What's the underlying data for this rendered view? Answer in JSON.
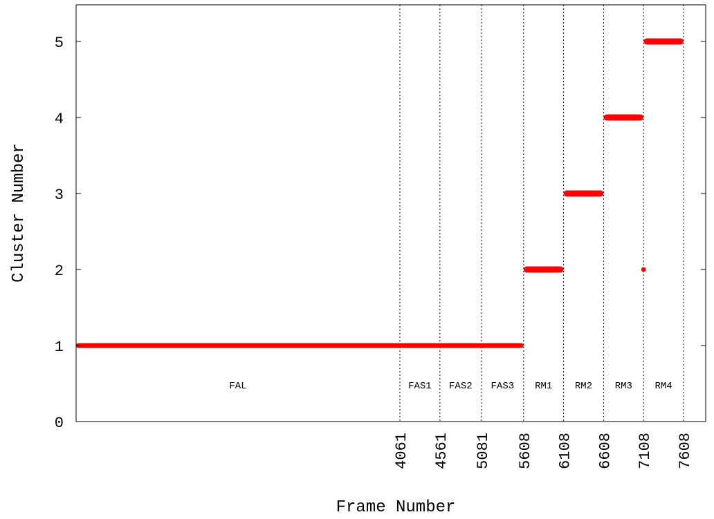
{
  "chart_data": {
    "type": "scatter",
    "xlabel": "Frame Number",
    "ylabel": "Cluster Number",
    "xlim": [
      0,
      7608
    ],
    "ylim": [
      0,
      5.5
    ],
    "y_ticks": [
      "0",
      "1",
      "2",
      "3",
      "4",
      "5"
    ],
    "x_ticks": [
      "4061",
      "4561",
      "5081",
      "5608",
      "6108",
      "6608",
      "7108",
      "7608"
    ],
    "grid": "vertical dotted lines at x tick positions",
    "segments": [
      {
        "label": "FAL",
        "start": 0,
        "end": 4061
      },
      {
        "label": "FAS1",
        "start": 4061,
        "end": 4561
      },
      {
        "label": "FAS2",
        "start": 4561,
        "end": 5081
      },
      {
        "label": "FAS3",
        "start": 5081,
        "end": 5608
      },
      {
        "label": "RM1",
        "start": 5608,
        "end": 6108
      },
      {
        "label": "RM2",
        "start": 6108,
        "end": 6608
      },
      {
        "label": "RM3",
        "start": 6608,
        "end": 7108
      },
      {
        "label": "RM4",
        "start": 7108,
        "end": 7608
      }
    ],
    "series": [
      {
        "color": "#ff0000",
        "runs": [
          {
            "cluster": 1,
            "x_start": 0,
            "x_end": 5608
          },
          {
            "cluster": 2,
            "x_start": 5608,
            "x_end": 6108
          },
          {
            "cluster": 3,
            "x_start": 6108,
            "x_end": 6608
          },
          {
            "cluster": 4,
            "x_start": 6608,
            "x_end": 7108
          },
          {
            "cluster": 2,
            "x_start": 7108,
            "x_end": 7108
          },
          {
            "cluster": 5,
            "x_start": 7108,
            "x_end": 7608
          }
        ]
      }
    ]
  }
}
